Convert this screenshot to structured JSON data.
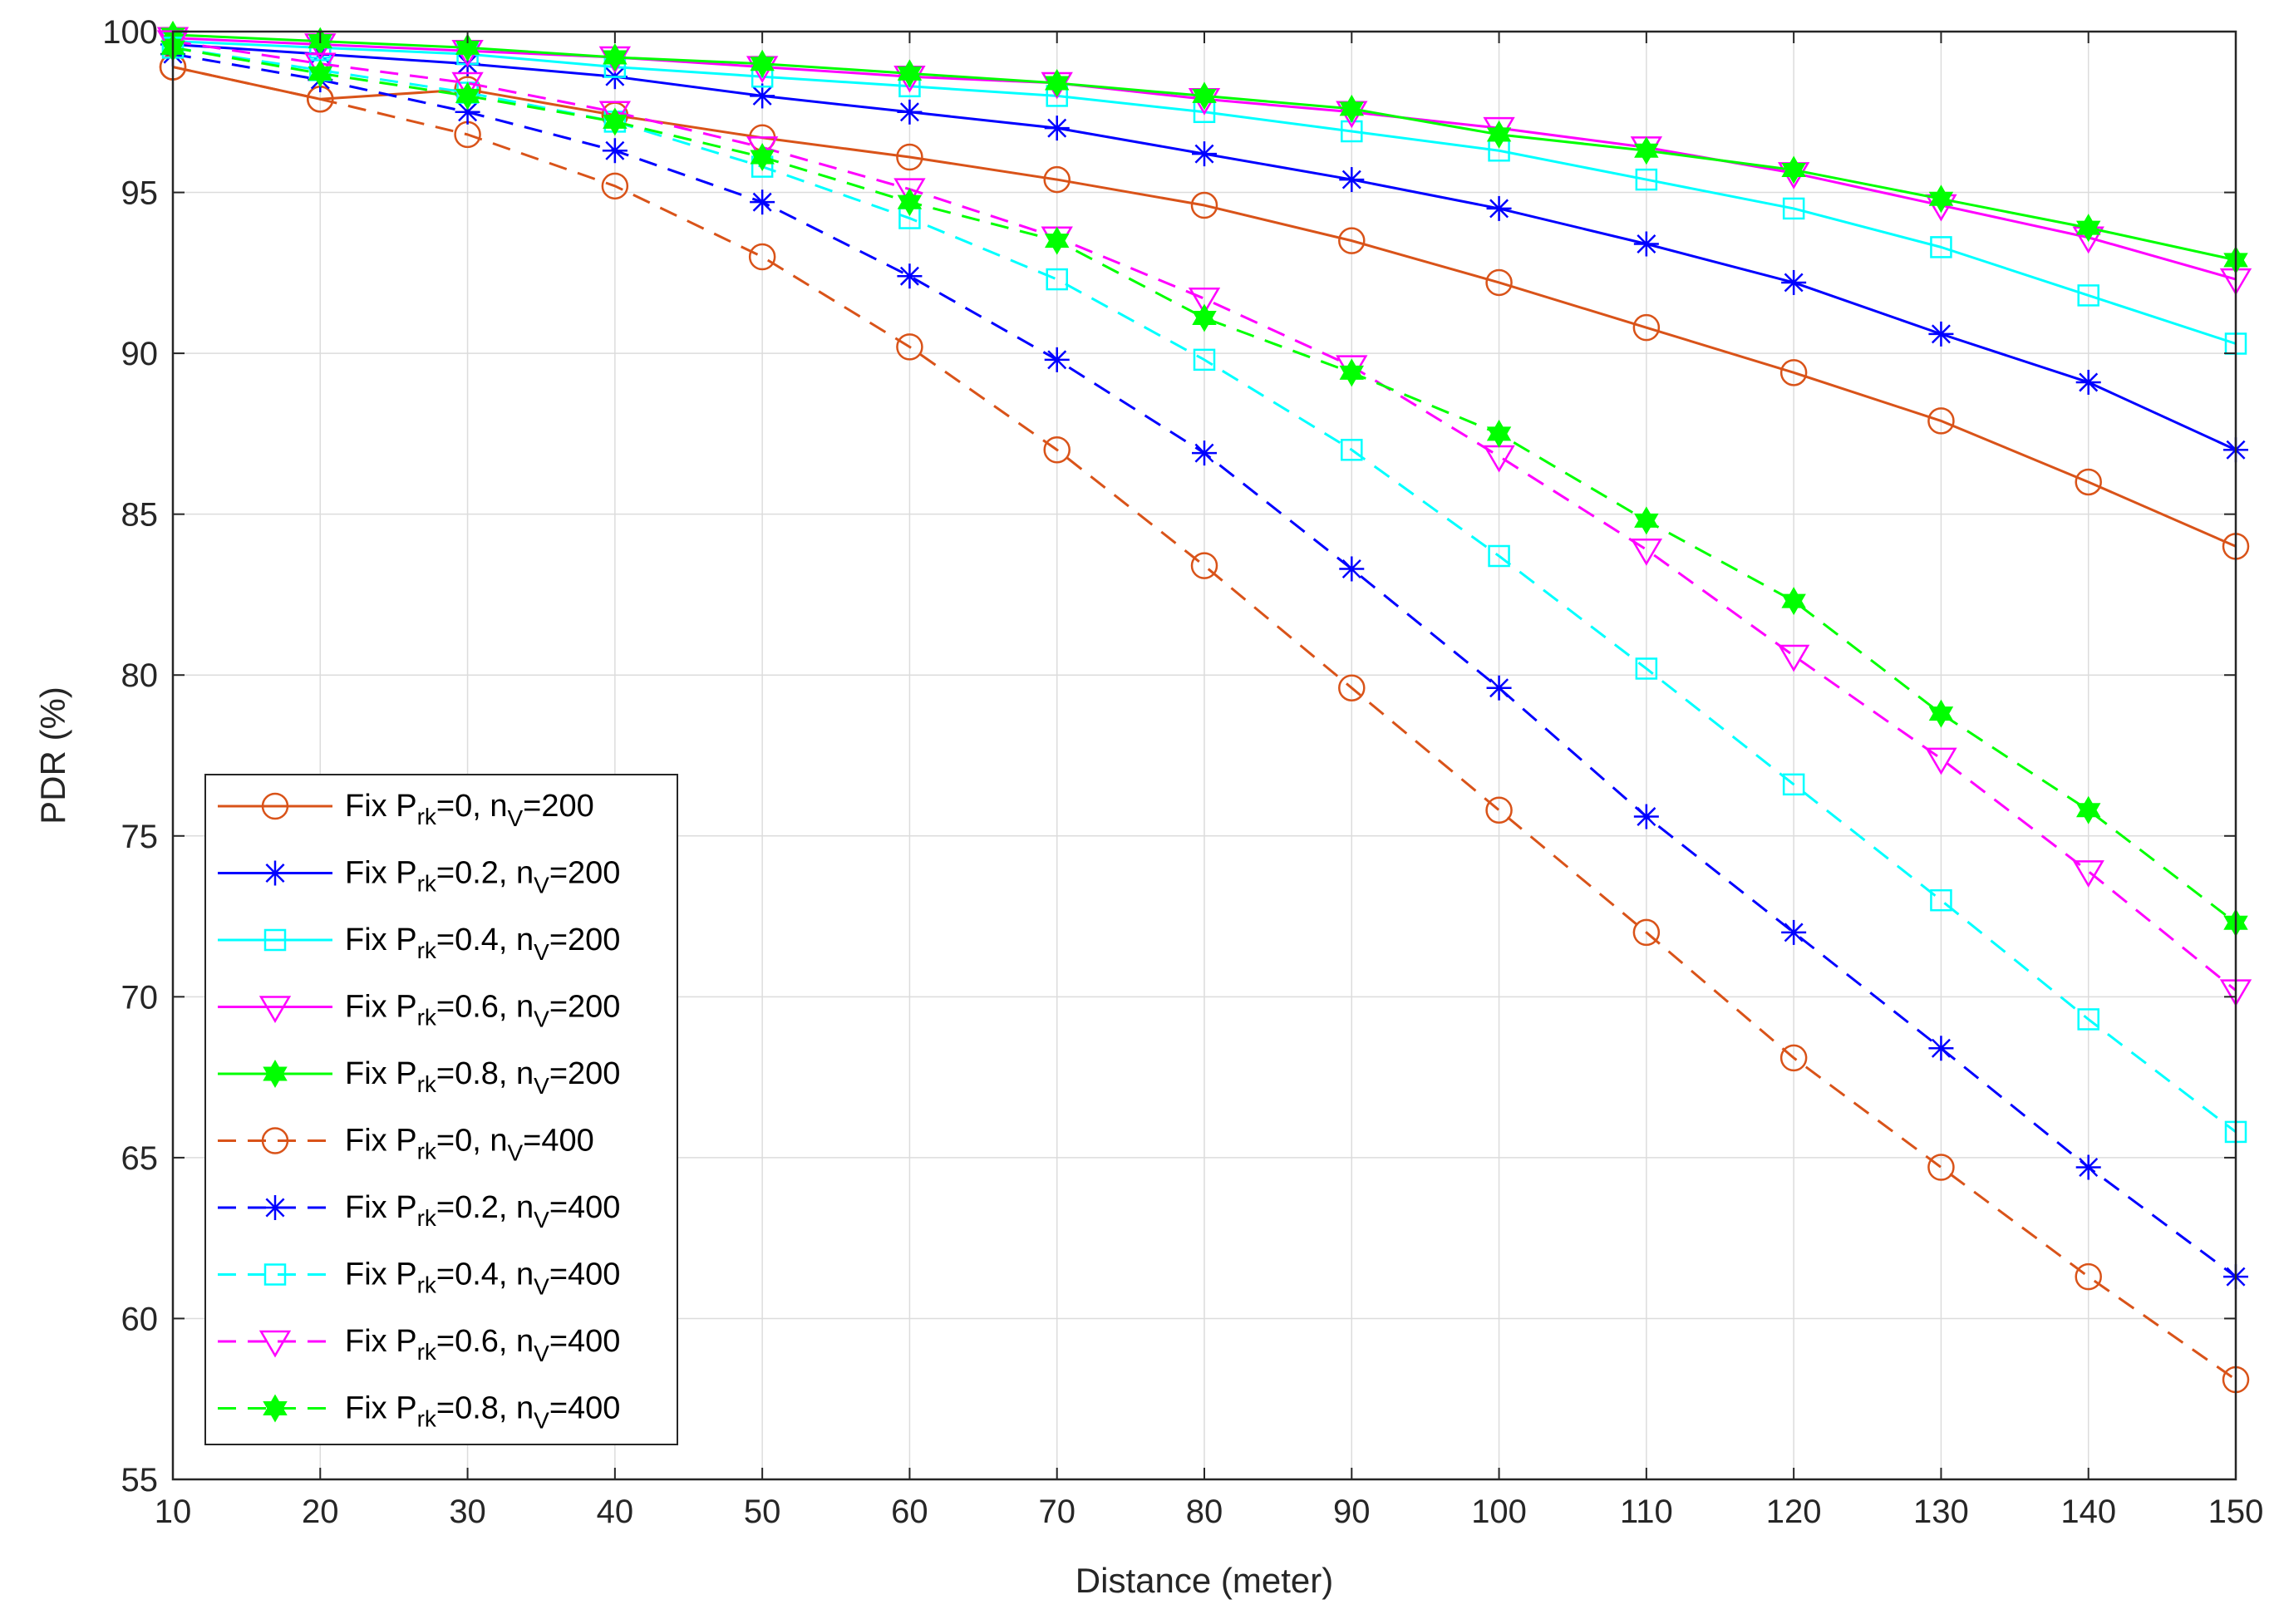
{
  "chart_data": {
    "type": "line",
    "title": "",
    "xlabel": "Distance (meter)",
    "ylabel": "PDR (%)",
    "xlim": [
      10,
      150
    ],
    "ylim": [
      55,
      100
    ],
    "grid": true,
    "legend_position": "bottom-left",
    "x": [
      10,
      20,
      30,
      40,
      50,
      60,
      70,
      80,
      90,
      100,
      110,
      120,
      130,
      140,
      150
    ],
    "x_ticks": [
      "10",
      "20",
      "30",
      "40",
      "50",
      "60",
      "70",
      "80",
      "90",
      "100",
      "110",
      "120",
      "130",
      "140",
      "150"
    ],
    "y_ticks": [
      "55",
      "60",
      "65",
      "70",
      "75",
      "80",
      "85",
      "90",
      "95",
      "100"
    ],
    "series": [
      {
        "name": "Fix P_rk=0, n_V=200",
        "label_main": "Fix P",
        "label_sub1": "rk",
        "label_mid": "=0, n",
        "label_sub2": "V",
        "label_end": "=200",
        "color": "#D95319",
        "dash": "solid",
        "marker": "circle",
        "values": [
          98.9,
          97.9,
          98.2,
          97.4,
          96.7,
          96.1,
          95.4,
          94.6,
          93.5,
          92.2,
          90.8,
          89.4,
          87.9,
          86.0,
          84.0
        ]
      },
      {
        "name": "Fix P_rk=0.2, n_V=200",
        "label_main": "Fix P",
        "label_sub1": "rk",
        "label_mid": "=0.2, n",
        "label_sub2": "V",
        "label_end": "=200",
        "color": "#0000FF",
        "dash": "solid",
        "marker": "asterisk",
        "values": [
          99.6,
          99.3,
          99.0,
          98.6,
          98.0,
          97.5,
          97.0,
          96.2,
          95.4,
          94.5,
          93.4,
          92.2,
          90.6,
          89.1,
          87.0
        ]
      },
      {
        "name": "Fix P_rk=0.4, n_V=200",
        "label_main": "Fix P",
        "label_sub1": "rk",
        "label_mid": "=0.4, n",
        "label_sub2": "V",
        "label_end": "=200",
        "color": "#00FFFF",
        "dash": "solid",
        "marker": "square",
        "values": [
          99.7,
          99.5,
          99.3,
          98.9,
          98.6,
          98.3,
          98.0,
          97.5,
          96.9,
          96.3,
          95.4,
          94.5,
          93.3,
          91.8,
          90.3
        ]
      },
      {
        "name": "Fix P_rk=0.6, n_V=200",
        "label_main": "Fix P",
        "label_sub1": "rk",
        "label_mid": "=0.6, n",
        "label_sub2": "V",
        "label_end": "=200",
        "color": "#FF00FF",
        "dash": "solid",
        "marker": "triangle-down",
        "values": [
          99.8,
          99.6,
          99.4,
          99.2,
          98.9,
          98.6,
          98.4,
          97.9,
          97.5,
          97.0,
          96.4,
          95.6,
          94.6,
          93.6,
          92.3
        ]
      },
      {
        "name": "Fix P_rk=0.8, n_V=200",
        "label_main": "Fix P",
        "label_sub1": "rk",
        "label_mid": "=0.8, n",
        "label_sub2": "V",
        "label_end": "=200",
        "color": "#00FF00",
        "dash": "solid",
        "marker": "hexagram",
        "values": [
          99.9,
          99.7,
          99.5,
          99.2,
          99.0,
          98.7,
          98.4,
          98.0,
          97.6,
          96.8,
          96.3,
          95.7,
          94.8,
          93.9,
          92.9
        ]
      },
      {
        "name": "Fix P_rk=0, n_V=400",
        "label_main": "Fix P",
        "label_sub1": "rk",
        "label_mid": "=0, n",
        "label_sub2": "V",
        "label_end": "=400",
        "color": "#D95319",
        "dash": "dashed",
        "marker": "circle",
        "values": [
          98.9,
          97.9,
          96.8,
          95.2,
          93.0,
          90.2,
          87.0,
          83.4,
          79.6,
          75.8,
          72.0,
          68.1,
          64.7,
          61.3,
          58.1
        ]
      },
      {
        "name": "Fix P_rk=0.2, n_V=400",
        "label_main": "Fix P",
        "label_sub1": "rk",
        "label_mid": "=0.2, n",
        "label_sub2": "V",
        "label_end": "=400",
        "color": "#0000FF",
        "dash": "dashed",
        "marker": "asterisk",
        "values": [
          99.3,
          98.5,
          97.5,
          96.3,
          94.7,
          92.4,
          89.8,
          86.9,
          83.3,
          79.6,
          75.6,
          72.0,
          68.4,
          64.7,
          61.3
        ]
      },
      {
        "name": "Fix P_rk=0.4, n_V=400",
        "label_main": "Fix P",
        "label_sub1": "rk",
        "label_mid": "=0.4, n",
        "label_sub2": "V",
        "label_end": "=400",
        "color": "#00FFFF",
        "dash": "dashed",
        "marker": "square",
        "values": [
          99.5,
          98.8,
          98.1,
          97.2,
          95.8,
          94.2,
          92.3,
          89.8,
          87.0,
          83.7,
          80.2,
          76.6,
          73.0,
          69.3,
          65.8
        ]
      },
      {
        "name": "Fix P_rk=0.6, n_V=400",
        "label_main": "Fix P",
        "label_sub1": "rk",
        "label_mid": "=0.6, n",
        "label_sub2": "V",
        "label_end": "=400",
        "color": "#FF00FF",
        "dash": "dashed",
        "marker": "triangle-down",
        "values": [
          99.7,
          99.0,
          98.4,
          97.5,
          96.4,
          95.1,
          93.6,
          91.7,
          89.6,
          86.8,
          83.9,
          80.6,
          77.4,
          73.9,
          70.2
        ]
      },
      {
        "name": "Fix P_rk=0.8, n_V=400",
        "label_main": "Fix P",
        "label_sub1": "rk",
        "label_mid": "=0.8, n",
        "label_sub2": "V",
        "label_end": "=400",
        "color": "#00FF00",
        "dash": "dashed",
        "marker": "hexagram",
        "values": [
          99.5,
          98.7,
          98.0,
          97.2,
          96.1,
          94.7,
          93.5,
          91.1,
          89.4,
          87.5,
          84.8,
          82.3,
          78.8,
          75.8,
          72.3
        ]
      }
    ]
  }
}
